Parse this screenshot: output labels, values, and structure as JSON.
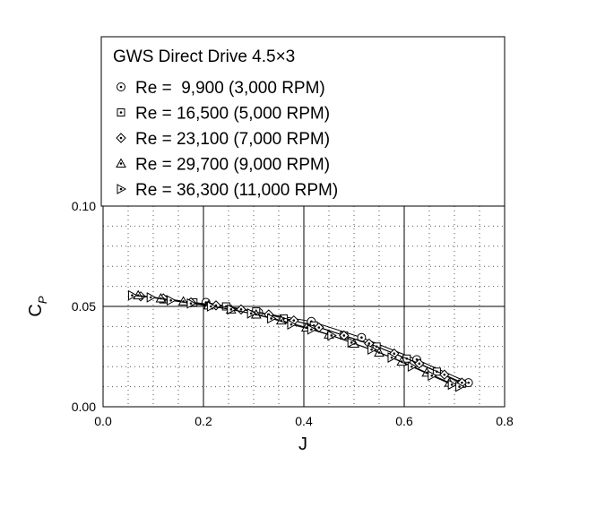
{
  "chart_data": {
    "type": "line",
    "title": "",
    "xlabel": "J",
    "ylabel": {
      "main": "C",
      "sub": "P"
    },
    "xlim": [
      0.0,
      0.8
    ],
    "ylim": [
      0.0,
      0.1
    ],
    "xticks": [
      "0.0",
      "0.2",
      "0.4",
      "0.6",
      "0.8"
    ],
    "yticks": [
      "0.00",
      "0.05",
      "0.10"
    ],
    "x_tick_values": [
      0.0,
      0.2,
      0.4,
      0.6,
      0.8
    ],
    "y_tick_values": [
      0.0,
      0.05,
      0.1
    ],
    "grid": "major solid, minor dotted",
    "legend_placement": "top, above plot",
    "legend_title": "GWS Direct Drive 4.5×3",
    "series": [
      {
        "name": "Re =  9,900 (3,000 RPM)",
        "marker": "circle-dot",
        "x": [
          0.205,
          0.31,
          0.415,
          0.515,
          0.625,
          0.728
        ],
        "y": [
          0.052,
          0.047,
          0.0425,
          0.0345,
          0.0235,
          0.012
        ]
      },
      {
        "name": "Re = 16,500 (5,000 RPM)",
        "marker": "square-dot",
        "x": [
          0.12,
          0.18,
          0.245,
          0.305,
          0.36,
          0.42,
          0.48,
          0.545,
          0.605,
          0.665,
          0.715
        ],
        "y": [
          0.0535,
          0.052,
          0.05,
          0.0475,
          0.044,
          0.0405,
          0.0355,
          0.03,
          0.024,
          0.0175,
          0.0115
        ]
      },
      {
        "name": "Re = 23,100 (7,000 RPM)",
        "marker": "diamond-dot",
        "x": [
          0.075,
          0.12,
          0.175,
          0.225,
          0.275,
          0.33,
          0.38,
          0.43,
          0.48,
          0.53,
          0.58,
          0.63,
          0.68,
          0.715
        ],
        "y": [
          0.055,
          0.054,
          0.052,
          0.0505,
          0.0485,
          0.046,
          0.043,
          0.0395,
          0.0355,
          0.0315,
          0.0265,
          0.0215,
          0.016,
          0.012
        ]
      },
      {
        "name": "Re = 29,700 (9,000 RPM)",
        "marker": "triangle-up-dot",
        "x": [
          0.07,
          0.115,
          0.16,
          0.21,
          0.255,
          0.305,
          0.355,
          0.405,
          0.45,
          0.5,
          0.55,
          0.595,
          0.645,
          0.69
        ],
        "y": [
          0.0555,
          0.054,
          0.0525,
          0.0505,
          0.0485,
          0.046,
          0.043,
          0.0395,
          0.036,
          0.0315,
          0.027,
          0.0225,
          0.017,
          0.012
        ]
      },
      {
        "name": "Re = 36,300 (11,000 RPM)",
        "marker": "triangle-right-dot",
        "x": [
          0.058,
          0.095,
          0.135,
          0.175,
          0.215,
          0.255,
          0.295,
          0.335,
          0.375,
          0.415,
          0.455,
          0.495,
          0.535,
          0.575,
          0.615,
          0.655,
          0.695,
          0.71
        ],
        "y": [
          0.0555,
          0.0545,
          0.053,
          0.0515,
          0.05,
          0.0485,
          0.0465,
          0.044,
          0.041,
          0.0385,
          0.0355,
          0.032,
          0.0285,
          0.0245,
          0.02,
          0.0155,
          0.011,
          0.01
        ]
      }
    ]
  }
}
